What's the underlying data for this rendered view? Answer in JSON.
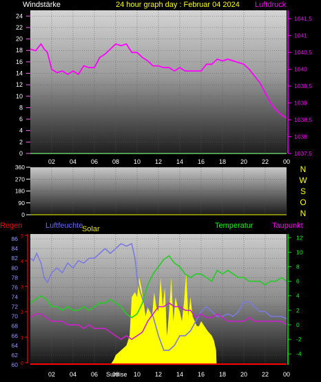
{
  "header": {
    "left_label": "Windstärke",
    "title": "24 hour graph day : Februar 04 2024",
    "right_label": "Luftdruck"
  },
  "colors": {
    "background": "#000000",
    "pressure_line": "#ff00ff",
    "wind_line": "#66cc66",
    "temperature_line": "#22cc22",
    "dewpoint_line": "#cc22cc",
    "humidity_line": "#7a7ae0",
    "solar_fill": "#ffff00",
    "rain_line": "#ff0000",
    "title_yellow": "#ffff00",
    "left_axis_pink": "#ff66ff",
    "label_blue": "#6666ff",
    "label_green": "#00ff00",
    "label_red": "#ff0000",
    "direction_yellow": "#ffff00"
  },
  "x_labels": [
    "02",
    "04",
    "06",
    "08",
    "10",
    "12",
    "14",
    "16",
    "18",
    "20",
    "22",
    "00"
  ],
  "panel_top": {
    "left_ticks": [
      "24",
      "22",
      "20",
      "18",
      "16",
      "14",
      "12",
      "10",
      "8",
      "6",
      "4",
      "2",
      "0"
    ],
    "right_ticks": [
      "1041,5",
      "1041",
      "1040,5",
      "1040",
      "1039,5",
      "1039",
      "1038,5",
      "1038",
      "1037,5"
    ]
  },
  "panel_mid": {
    "left_ticks": [
      "360",
      "270",
      "180",
      "90",
      "0"
    ],
    "direction_letters": [
      "N",
      "W",
      "S",
      "O",
      "N"
    ]
  },
  "panel_bottom": {
    "labels": {
      "rain": "Regen",
      "humidity": "Luftfeuchte",
      "solar": "Solar",
      "temperature": "Temperatur",
      "dewpoint": "Taupunkt",
      "sunrise": "Sunrise"
    },
    "left_ticks": [
      "86",
      "84",
      "82",
      "80",
      "78",
      "76",
      "74",
      "72",
      "70",
      "68",
      "66",
      "64",
      "62",
      "60"
    ],
    "right_ticks": [
      "12",
      "10",
      "8",
      "6",
      "4",
      "2",
      "0",
      "-2",
      "-4"
    ],
    "rain_ticks": [
      "5",
      "4",
      "3",
      "2",
      "1",
      "0"
    ]
  },
  "chart_data": [
    {
      "type": "line",
      "title": "24 hour graph day : Februar 04 2024",
      "x_unit": "hours since 00:00",
      "xlim": [
        0,
        24
      ],
      "ylim": [
        0,
        25
      ],
      "ylim_right": [
        1037.5,
        1041.75
      ],
      "series": [
        {
          "name": "Luftdruck",
          "axis": "right",
          "x": [
            0,
            0.5,
            1,
            1.3,
            1.6,
            2,
            2.5,
            3,
            3.5,
            4,
            4.5,
            5,
            5.5,
            6,
            6.5,
            7,
            7.5,
            8,
            8.5,
            9,
            9.5,
            10,
            10.5,
            11,
            11.5,
            12,
            12.5,
            13,
            13.5,
            14,
            14.5,
            15,
            15.5,
            16,
            16.5,
            17,
            17.5,
            18,
            18.5,
            19,
            19.5,
            20,
            20.5,
            21,
            21.5,
            22,
            22.5,
            23,
            23.5,
            24
          ],
          "values": [
            1040.6,
            1040.55,
            1040.75,
            1040.6,
            1040.5,
            1040.0,
            1039.9,
            1039.95,
            1039.85,
            1039.95,
            1039.85,
            1040.1,
            1040.05,
            1040.05,
            1040.35,
            1040.45,
            1040.6,
            1040.75,
            1040.7,
            1040.75,
            1040.5,
            1040.5,
            1040.35,
            1040.25,
            1040.1,
            1040.1,
            1040.05,
            1040.05,
            1039.95,
            1040.05,
            1039.95,
            1039.95,
            1039.95,
            1039.95,
            1040.15,
            1040.15,
            1040.3,
            1040.25,
            1040.3,
            1040.25,
            1040.2,
            1040.15,
            1040.0,
            1039.8,
            1039.6,
            1039.3,
            1039.0,
            1038.8,
            1038.65,
            1038.55
          ]
        },
        {
          "name": "Windstärke",
          "axis": "left",
          "x": [
            0,
            24
          ],
          "values": [
            0,
            0
          ]
        }
      ]
    },
    {
      "type": "line",
      "xlim": [
        0,
        24
      ],
      "ylim": [
        0,
        360
      ],
      "series": [
        {
          "x": [],
          "values": []
        }
      ]
    },
    {
      "type": "line",
      "xlim": [
        0,
        24
      ],
      "ylim": [
        60,
        87
      ],
      "ylim_right": [
        -5.5,
        12.5
      ],
      "series": [
        {
          "name": "Luftfeuchte",
          "axis": "left",
          "x": [
            0,
            0.3,
            0.6,
            1,
            1.3,
            1.6,
            2,
            2.5,
            3,
            3.5,
            4,
            4.5,
            5,
            5.5,
            6,
            6.5,
            7,
            7.5,
            8,
            8.5,
            9,
            9.5,
            9.8,
            10,
            10.3,
            10.6,
            11,
            11.5,
            12,
            12.5,
            13,
            13.5,
            14,
            14.5,
            15,
            15.5,
            16,
            16.5,
            17,
            17.5,
            18,
            18.5,
            19,
            19.5,
            20,
            20.5,
            21,
            21.5,
            22,
            22.5,
            23,
            23.5,
            24
          ],
          "values": [
            82,
            81.5,
            83,
            81,
            78,
            77,
            79,
            80,
            79,
            81,
            80,
            81.5,
            81,
            82,
            82,
            83,
            84,
            83,
            84,
            85,
            84.5,
            85,
            82,
            78,
            75,
            73,
            72,
            70,
            66,
            63,
            63,
            64,
            66,
            66,
            67,
            69,
            71,
            72,
            71,
            70,
            70,
            70.5,
            70,
            71,
            73,
            73,
            72,
            71,
            71,
            70,
            70,
            70,
            69.5
          ]
        },
        {
          "name": "Temperatur",
          "axis": "right",
          "x": [
            0,
            0.5,
            1,
            1.5,
            2,
            2.5,
            3,
            3.5,
            4,
            4.5,
            5,
            5.5,
            6,
            6.5,
            7,
            7.5,
            8,
            8.5,
            9,
            9.5,
            10,
            10.5,
            11,
            11.5,
            12,
            12.5,
            13,
            13.5,
            14,
            14.5,
            15,
            15.5,
            16,
            16.5,
            17,
            17.5,
            18,
            18.5,
            19,
            19.5,
            20,
            20.5,
            21,
            21.5,
            22,
            22.5,
            23,
            23.5,
            24
          ],
          "values": [
            3,
            3.5,
            4,
            3.5,
            2.5,
            2.5,
            2.0,
            2.5,
            2.0,
            2.0,
            2.5,
            2.0,
            2.5,
            3.0,
            3.0,
            3.5,
            3.0,
            2.5,
            1.5,
            1.0,
            1.5,
            3.0,
            5.5,
            7.0,
            8.0,
            9.0,
            9.5,
            8.5,
            8.0,
            7.0,
            6.5,
            7.0,
            7.0,
            6.5,
            6.0,
            7.5,
            7.0,
            7.5,
            7.0,
            6.5,
            6.5,
            6.0,
            6.0,
            6.0,
            5.5,
            6.0,
            6.0,
            6.5,
            6.0
          ]
        },
        {
          "name": "Taupunkt",
          "axis": "right",
          "x": [
            0,
            0.5,
            1,
            1.5,
            2,
            2.5,
            3,
            3.5,
            4,
            4.5,
            5,
            5.5,
            6,
            6.5,
            7,
            7.5,
            8,
            8.5,
            9,
            9.5,
            10,
            10.5,
            11,
            11.5,
            12,
            12.5,
            13,
            13.5,
            14,
            14.5,
            15,
            15.5,
            16,
            16.5,
            17,
            17.5,
            18,
            18.5,
            19,
            19.5,
            20,
            20.5,
            21,
            21.5,
            22,
            22.5,
            23,
            23.5,
            24
          ],
          "values": [
            1.0,
            1.5,
            1.5,
            1.0,
            0.5,
            0.5,
            0.5,
            0,
            0,
            0,
            -0.5,
            0,
            -0.5,
            -0.5,
            -0.5,
            -1.0,
            -1.5,
            -2.0,
            -1.5,
            -2.0,
            -1.5,
            -1.0,
            0.5,
            1.5,
            2.5,
            2.5,
            3.0,
            2.5,
            2.5,
            2.0,
            2.0,
            1.0,
            1.5,
            1.0,
            1.0,
            1.5,
            1.0,
            0.5,
            0.5,
            0.5,
            0.5,
            1.0,
            0.5,
            0.5,
            0.5,
            0.5,
            0.5,
            0.5,
            0.0
          ]
        },
        {
          "name": "Solar",
          "axis": "left",
          "x": [
            7.5,
            7.8,
            8.0,
            8.5,
            9.0,
            9.3,
            9.5,
            9.8,
            10.0,
            10.2,
            10.4,
            10.6,
            10.8,
            11.0,
            11.2,
            11.4,
            11.6,
            11.8,
            12.0,
            12.2,
            12.4,
            12.6,
            12.8,
            13.0,
            13.2,
            13.4,
            13.6,
            13.8,
            14.0,
            14.2,
            14.4,
            14.6,
            14.8,
            15.0,
            15.2,
            15.4,
            15.6,
            15.8,
            16.0,
            16.3,
            16.6,
            17.0,
            17.2,
            17.4,
            17.45
          ],
          "values": [
            60,
            61,
            62,
            63,
            64,
            66,
            74,
            75,
            74,
            78,
            76,
            73,
            70,
            72,
            71,
            70,
            75,
            72,
            71,
            78,
            72,
            76,
            66,
            71,
            78,
            69,
            74,
            72,
            71,
            69,
            73,
            79,
            70,
            74,
            70,
            69,
            68,
            68,
            69,
            68,
            67,
            66,
            65,
            63,
            60
          ]
        },
        {
          "name": "Regen",
          "axis": "rain",
          "x": [
            0,
            24
          ],
          "values": [
            0,
            0
          ]
        }
      ]
    }
  ]
}
